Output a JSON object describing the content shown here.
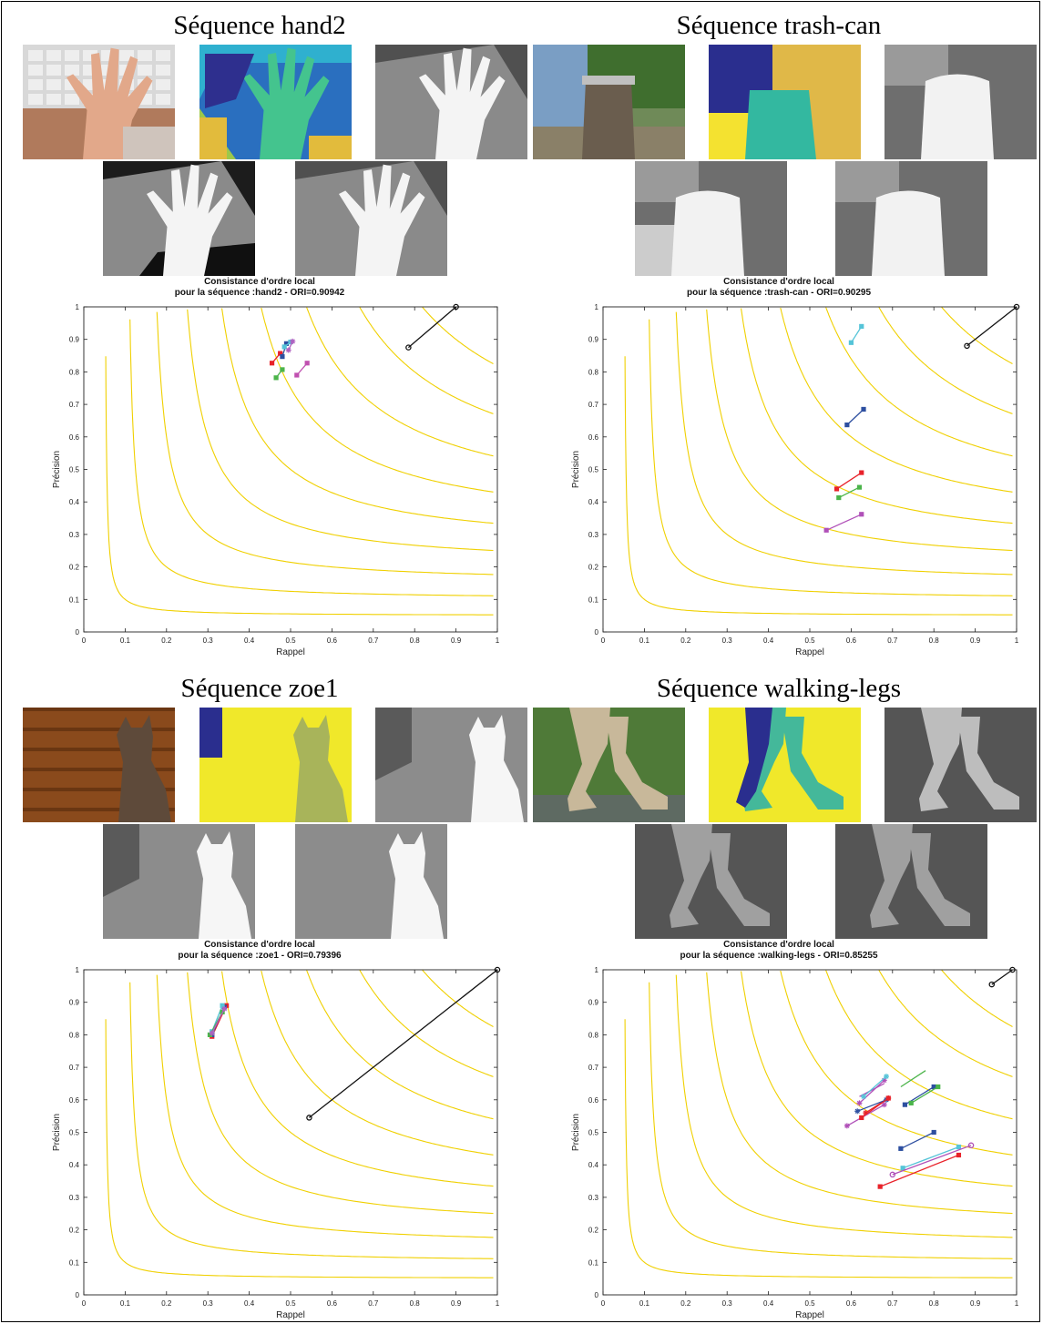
{
  "panels": [
    {
      "sequence_title": "Séquence hand2",
      "plot_title_line1": "Consistance d'ordre local",
      "plot_title_line2": "pour la séquence :hand2 - ORI=0.90942",
      "thumbnails": [
        "photo-hand",
        "segmentation-colored-hand",
        "gray-hand",
        "gray-hand",
        "gray-hand"
      ],
      "thumbnail_styles": [
        "photo-hand",
        "seg-hand",
        "gray-hand-a",
        "gray-hand-b",
        "gray-hand-c"
      ]
    },
    {
      "sequence_title": "Séquence trash-can",
      "plot_title_line1": "Consistance d'ordre local",
      "plot_title_line2": "pour la séquence :trash-can - ORI=0.90295",
      "thumbnails": [
        "photo-trash-can",
        "segmentation-colored-trash-can",
        "gray-trash-can",
        "gray-trash-can",
        "gray-trash-can"
      ],
      "thumbnail_styles": [
        "photo-trash",
        "seg-trash",
        "gray-trash-a",
        "gray-trash-b",
        "gray-trash-c"
      ]
    },
    {
      "sequence_title": "Séquence zoe1",
      "plot_title_line1": "Consistance d'ordre local",
      "plot_title_line2": "pour la séquence :zoe1 - ORI=0.79396",
      "thumbnails": [
        "photo-cat",
        "segmentation-colored-cat",
        "gray-cat",
        "gray-cat",
        "gray-cat"
      ],
      "thumbnail_styles": [
        "photo-cat",
        "seg-cat",
        "gray-cat-a",
        "gray-cat-b",
        "gray-cat-c"
      ]
    },
    {
      "sequence_title": "Séquence walking-legs",
      "plot_title_line1": "Consistance d'ordre local",
      "plot_title_line2": "pour la séquence :walking-legs - ORI=0.85255",
      "thumbnails": [
        "photo-legs",
        "segmentation-colored-legs",
        "gray-legs",
        "gray-legs",
        "gray-legs"
      ],
      "thumbnail_styles": [
        "photo-legs",
        "seg-legs",
        "gray-legs-a",
        "gray-legs-b",
        "gray-legs-c"
      ]
    }
  ],
  "chart_data": [
    {
      "type": "line",
      "title": "Consistance d'ordre local pour la séquence :hand2 - ORI=0.90942",
      "xlabel": "Rappel",
      "ylabel": "Précision",
      "xlim": [
        0,
        1
      ],
      "ylim": [
        0,
        1
      ],
      "xticks": [
        "0",
        "0.1",
        "0.2",
        "0.3",
        "0.4",
        "0.5",
        "0.6",
        "0.7",
        "0.8",
        "0.9",
        "1"
      ],
      "yticks": [
        "0",
        "0.1",
        "0.2",
        "0.3",
        "0.4",
        "0.5",
        "0.6",
        "0.7",
        "0.8",
        "0.9",
        "1"
      ],
      "iso_f_levels": [
        0.1,
        0.2,
        0.3,
        0.4,
        0.5,
        0.6,
        0.7,
        0.8,
        0.9
      ],
      "iso_color": "#f0d000",
      "series": [
        {
          "color": "#111111",
          "marker": "o",
          "x": [
            0.785,
            0.9
          ],
          "y": [
            0.875,
            1.0
          ]
        },
        {
          "color": "#e8222a",
          "marker": "s",
          "x": [
            0.455,
            0.475
          ],
          "y": [
            0.827,
            0.857
          ]
        },
        {
          "color": "#2d4fa0",
          "marker": "s",
          "x": [
            0.48,
            0.49
          ],
          "y": [
            0.847,
            0.887
          ]
        },
        {
          "color": "#55c4d8",
          "marker": "s",
          "x": [
            0.485,
            0.5
          ],
          "y": [
            0.877,
            0.892
          ]
        },
        {
          "color": "#4bb44a",
          "marker": "s",
          "x": [
            0.465,
            0.48
          ],
          "y": [
            0.782,
            0.807
          ]
        },
        {
          "color": "#c050b0",
          "marker": "s",
          "x": [
            0.515,
            0.54
          ],
          "y": [
            0.79,
            0.827
          ]
        },
        {
          "color": "#b060c0",
          "marker": "*",
          "x": [
            0.495,
            0.505
          ],
          "y": [
            0.867,
            0.894
          ]
        }
      ]
    },
    {
      "type": "line",
      "title": "Consistance d'ordre local pour la séquence :trash-can - ORI=0.90295",
      "xlabel": "Rappel",
      "ylabel": "Précision",
      "xlim": [
        0,
        1
      ],
      "ylim": [
        0,
        1
      ],
      "xticks": [
        "0",
        "0.1",
        "0.2",
        "0.3",
        "0.4",
        "0.5",
        "0.6",
        "0.7",
        "0.8",
        "0.9",
        "1"
      ],
      "yticks": [
        "0",
        "0.1",
        "0.2",
        "0.3",
        "0.4",
        "0.5",
        "0.6",
        "0.7",
        "0.8",
        "0.9",
        "1"
      ],
      "iso_f_levels": [
        0.1,
        0.2,
        0.3,
        0.4,
        0.5,
        0.6,
        0.7,
        0.8,
        0.9
      ],
      "iso_color": "#f0d000",
      "series": [
        {
          "color": "#111111",
          "marker": "o",
          "x": [
            0.88,
            1.0
          ],
          "y": [
            0.88,
            1.0
          ]
        },
        {
          "color": "#55c4d8",
          "marker": "s",
          "x": [
            0.6,
            0.625
          ],
          "y": [
            0.89,
            0.94
          ]
        },
        {
          "color": "#2d4fa0",
          "marker": "s",
          "x": [
            0.59,
            0.63
          ],
          "y": [
            0.637,
            0.685
          ]
        },
        {
          "color": "#e8222a",
          "marker": "s",
          "x": [
            0.565,
            0.625
          ],
          "y": [
            0.44,
            0.49
          ]
        },
        {
          "color": "#4bb44a",
          "marker": "s",
          "x": [
            0.57,
            0.62
          ],
          "y": [
            0.413,
            0.445
          ]
        },
        {
          "color": "#b050b8",
          "marker": "s",
          "x": [
            0.54,
            0.625
          ],
          "y": [
            0.313,
            0.362
          ]
        }
      ]
    },
    {
      "type": "line",
      "title": "Consistance d'ordre local pour la séquence :zoe1 - ORI=0.79396",
      "xlabel": "Rappel",
      "ylabel": "Précision",
      "xlim": [
        0,
        1
      ],
      "ylim": [
        0,
        1
      ],
      "xticks": [
        "0",
        "0.1",
        "0.2",
        "0.3",
        "0.4",
        "0.5",
        "0.6",
        "0.7",
        "0.8",
        "0.9",
        "1"
      ],
      "yticks": [
        "0",
        "0.1",
        "0.2",
        "0.3",
        "0.4",
        "0.5",
        "0.6",
        "0.7",
        "0.8",
        "0.9",
        "1"
      ],
      "iso_f_levels": [
        0.1,
        0.2,
        0.3,
        0.4,
        0.5,
        0.6,
        0.7,
        0.8,
        0.9
      ],
      "iso_color": "#f0d000",
      "series": [
        {
          "color": "#111111",
          "marker": "o",
          "x": [
            0.545,
            1.0
          ],
          "y": [
            0.545,
            1.0
          ]
        },
        {
          "color": "#e8222a",
          "marker": "s",
          "x": [
            0.31,
            0.345
          ],
          "y": [
            0.795,
            0.89
          ]
        },
        {
          "color": "#2d4fa0",
          "marker": "s",
          "x": [
            0.31,
            0.34
          ],
          "y": [
            0.8,
            0.885
          ]
        },
        {
          "color": "#55c4d8",
          "marker": "s",
          "x": [
            0.31,
            0.335
          ],
          "y": [
            0.81,
            0.89
          ]
        },
        {
          "color": "#4bb44a",
          "marker": "s",
          "x": [
            0.305,
            0.335
          ],
          "y": [
            0.8,
            0.87
          ]
        },
        {
          "color": "#b060c0",
          "marker": "*",
          "x": [
            0.31,
            0.34
          ],
          "y": [
            0.805,
            0.88
          ]
        }
      ]
    },
    {
      "type": "line",
      "title": "Consistance d'ordre local pour la séquence :walking-legs - ORI=0.85255",
      "xlabel": "Rappel",
      "ylabel": "Précision",
      "xlim": [
        0,
        1
      ],
      "ylim": [
        0,
        1
      ],
      "xticks": [
        "0",
        "0.1",
        "0.2",
        "0.3",
        "0.4",
        "0.5",
        "0.6",
        "0.7",
        "0.8",
        "0.9",
        "1"
      ],
      "yticks": [
        "0",
        "0.1",
        "0.2",
        "0.3",
        "0.4",
        "0.5",
        "0.6",
        "0.7",
        "0.8",
        "0.9",
        "1"
      ],
      "iso_f_levels": [
        0.1,
        0.2,
        0.3,
        0.4,
        0.5,
        0.6,
        0.7,
        0.8,
        0.9
      ],
      "iso_color": "#f0d000",
      "series": [
        {
          "color": "#111111",
          "marker": "o",
          "x": [
            0.94,
            0.99
          ],
          "y": [
            0.955,
            1.0
          ]
        },
        {
          "color": "#4bb44a",
          "marker": "none",
          "x": [
            0.72,
            0.78
          ],
          "y": [
            0.64,
            0.69
          ]
        },
        {
          "color": "#b050b8",
          "marker": "none",
          "x": [
            0.62,
            0.68
          ],
          "y": [
            0.61,
            0.65
          ]
        },
        {
          "color": "#b050b8",
          "marker": "*",
          "x": [
            0.62,
            0.68
          ],
          "y": [
            0.59,
            0.66
          ]
        },
        {
          "color": "#55c4d8",
          "marker": "*",
          "x": [
            0.63,
            0.685
          ],
          "y": [
            0.61,
            0.672
          ]
        },
        {
          "color": "#e8222a",
          "marker": "*",
          "x": [
            0.635,
            0.69
          ],
          "y": [
            0.56,
            0.605
          ]
        },
        {
          "color": "#2d4fa0",
          "marker": "*",
          "x": [
            0.615,
            0.685
          ],
          "y": [
            0.565,
            0.6
          ]
        },
        {
          "color": "#b050b8",
          "marker": "*",
          "x": [
            0.59,
            0.68
          ],
          "y": [
            0.52,
            0.585
          ]
        },
        {
          "color": "#e8222a",
          "marker": "s",
          "x": [
            0.625,
            0.69
          ],
          "y": [
            0.545,
            0.605
          ]
        },
        {
          "color": "#2d4fa0",
          "marker": "s",
          "x": [
            0.73,
            0.8
          ],
          "y": [
            0.585,
            0.64
          ]
        },
        {
          "color": "#4bb44a",
          "marker": "s",
          "x": [
            0.745,
            0.81
          ],
          "y": [
            0.59,
            0.64
          ]
        },
        {
          "color": "#2d4fa0",
          "marker": "s",
          "x": [
            0.72,
            0.8
          ],
          "y": [
            0.45,
            0.5
          ]
        },
        {
          "color": "#55c4d8",
          "marker": "s",
          "x": [
            0.725,
            0.86
          ],
          "y": [
            0.39,
            0.455
          ]
        },
        {
          "color": "#b050b8",
          "marker": "o",
          "x": [
            0.7,
            0.89
          ],
          "y": [
            0.37,
            0.46
          ]
        },
        {
          "color": "#e8222a",
          "marker": "s",
          "x": [
            0.67,
            0.86
          ],
          "y": [
            0.333,
            0.43
          ]
        }
      ]
    }
  ]
}
